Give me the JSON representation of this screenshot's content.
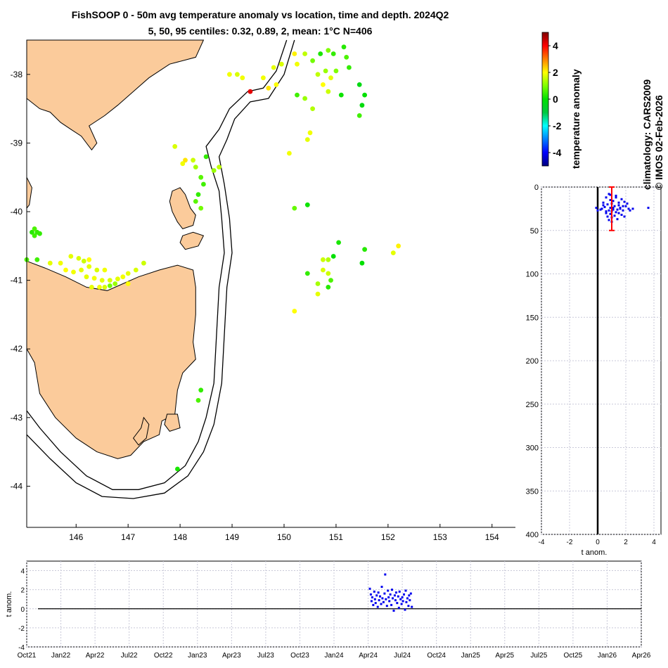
{
  "title_line1": "FishSOOP 0 - 50m avg temperature anomaly vs location, time and depth. 2024Q2",
  "title_line2": "5, 50, 95 centiles: 0.32, 0.89, 2, mean: 1°C N=406",
  "climatology_label": "climatology: CARS2009",
  "copyright_label": "© IMOS 02-Feb-2026",
  "colorbar": {
    "label": "temperature anomaly",
    "range": [
      -5,
      5
    ],
    "ticks": [
      -4,
      -2,
      0,
      2,
      4
    ],
    "colormap": [
      "#00007f",
      "#0000ff",
      "#007fff",
      "#00ffff",
      "#00c840",
      "#00e000",
      "#7fff00",
      "#ffff00",
      "#ff7f00",
      "#ff0000",
      "#7f0000"
    ]
  },
  "chart_data": [
    {
      "type": "scatter",
      "name": "map",
      "xlabel": "",
      "ylabel": "",
      "xlim": [
        145.05,
        154.45
      ],
      "ylim": [
        -44.6,
        -37.5
      ],
      "xticks": [
        146,
        147,
        148,
        149,
        150,
        151,
        152,
        153,
        154
      ],
      "yticks": [
        -38,
        -39,
        -40,
        -41,
        -42,
        -43,
        -44
      ],
      "land_color": "#fbcb9b",
      "points": [
        [
          150.4,
          -37.7,
          1.5
        ],
        [
          150.55,
          -37.8,
          0.9
        ],
        [
          150.7,
          -37.7,
          0.2
        ],
        [
          150.85,
          -37.65,
          1.0
        ],
        [
          150.95,
          -37.7,
          0.4
        ],
        [
          151.15,
          -37.6,
          0.3
        ],
        [
          151.2,
          -37.75,
          0.6
        ],
        [
          151.25,
          -37.9,
          0.4
        ],
        [
          150.65,
          -38.0,
          1.5
        ],
        [
          150.8,
          -37.95,
          1.2
        ],
        [
          150.9,
          -38.05,
          1.8
        ],
        [
          151.0,
          -37.95,
          1.0
        ],
        [
          150.75,
          -38.15,
          2.0
        ],
        [
          150.85,
          -38.25,
          1.6
        ],
        [
          150.2,
          -37.7,
          2.1
        ],
        [
          150.25,
          -37.85,
          1.9
        ],
        [
          149.95,
          -37.85,
          1.7
        ],
        [
          149.8,
          -37.9,
          1.8
        ],
        [
          149.6,
          -38.05,
          1.9
        ],
        [
          149.7,
          -38.2,
          2.2
        ],
        [
          149.85,
          -38.15,
          2.0
        ],
        [
          149.35,
          -38.25,
          4.2
        ],
        [
          149.2,
          -38.05,
          1.9
        ],
        [
          149.1,
          -38.0,
          1.7
        ],
        [
          148.95,
          -38.0,
          1.9
        ],
        [
          150.25,
          -38.3,
          0.5
        ],
        [
          150.4,
          -38.35,
          1.2
        ],
        [
          150.55,
          -38.5,
          1.4
        ],
        [
          151.1,
          -38.3,
          0.1
        ],
        [
          151.45,
          -38.15,
          -0.3
        ],
        [
          151.55,
          -38.3,
          0.0
        ],
        [
          151.5,
          -38.45,
          -0.2
        ],
        [
          151.45,
          -38.6,
          0.5
        ],
        [
          150.5,
          -38.85,
          1.9
        ],
        [
          150.45,
          -38.95,
          1.8
        ],
        [
          150.1,
          -39.15,
          1.9
        ],
        [
          147.9,
          -39.05,
          1.7
        ],
        [
          148.1,
          -39.25,
          2.2
        ],
        [
          148.05,
          -39.3,
          1.9
        ],
        [
          148.25,
          -39.25,
          1.6
        ],
        [
          148.3,
          -39.35,
          1.3
        ],
        [
          148.5,
          -39.2,
          0.4
        ],
        [
          148.65,
          -39.4,
          1.2
        ],
        [
          148.75,
          -39.35,
          1.5
        ],
        [
          148.4,
          -39.5,
          0.7
        ],
        [
          148.45,
          -39.6,
          0.5
        ],
        [
          148.35,
          -39.75,
          0.4
        ],
        [
          148.3,
          -39.85,
          0.7
        ],
        [
          148.4,
          -39.95,
          0.9
        ],
        [
          150.2,
          -39.95,
          0.8
        ],
        [
          150.45,
          -39.9,
          0.1
        ],
        [
          151.05,
          -40.45,
          0.2
        ],
        [
          151.55,
          -40.55,
          0.3
        ],
        [
          152.2,
          -40.5,
          2.1
        ],
        [
          152.1,
          -40.6,
          1.8
        ],
        [
          151.5,
          -40.75,
          0.0
        ],
        [
          150.75,
          -40.7,
          1.6
        ],
        [
          150.85,
          -40.7,
          1.4
        ],
        [
          150.95,
          -40.65,
          0.0
        ],
        [
          150.75,
          -40.85,
          1.7
        ],
        [
          150.85,
          -40.9,
          1.6
        ],
        [
          150.45,
          -40.9,
          0.4
        ],
        [
          150.65,
          -41.05,
          1.3
        ],
        [
          150.9,
          -41.0,
          0.6
        ],
        [
          150.85,
          -41.1,
          0.3
        ],
        [
          150.65,
          -41.2,
          1.8
        ],
        [
          150.2,
          -41.45,
          2.0
        ],
        [
          145.15,
          -40.3,
          0.3
        ],
        [
          145.2,
          -40.35,
          0.5
        ],
        [
          145.25,
          -40.3,
          0.4
        ],
        [
          145.2,
          -40.25,
          0.6
        ],
        [
          145.3,
          -40.32,
          0.4
        ],
        [
          145.05,
          -40.7,
          0.6
        ],
        [
          145.25,
          -40.7,
          0.5
        ],
        [
          145.5,
          -40.75,
          1.8
        ],
        [
          145.7,
          -40.75,
          1.9
        ],
        [
          145.9,
          -40.65,
          1.8
        ],
        [
          146.05,
          -40.68,
          1.7
        ],
        [
          146.15,
          -40.72,
          1.6
        ],
        [
          146.25,
          -40.7,
          2.0
        ],
        [
          145.8,
          -40.85,
          2.0
        ],
        [
          145.95,
          -40.88,
          1.9
        ],
        [
          146.1,
          -40.85,
          1.8
        ],
        [
          146.25,
          -40.8,
          1.8
        ],
        [
          146.4,
          -40.85,
          1.7
        ],
        [
          146.55,
          -40.85,
          1.9
        ],
        [
          146.2,
          -40.95,
          1.8
        ],
        [
          146.35,
          -40.97,
          1.9
        ],
        [
          146.5,
          -41.0,
          1.8
        ],
        [
          146.65,
          -41.0,
          1.7
        ],
        [
          146.8,
          -40.98,
          1.8
        ],
        [
          146.9,
          -40.95,
          1.9
        ],
        [
          147.0,
          -40.9,
          1.8
        ],
        [
          147.15,
          -40.85,
          1.7
        ],
        [
          147.3,
          -40.75,
          1.6
        ],
        [
          147.0,
          -41.05,
          2.0
        ],
        [
          146.3,
          -41.1,
          1.8
        ],
        [
          146.45,
          -41.1,
          1.9
        ],
        [
          146.55,
          -41.1,
          1.7
        ],
        [
          146.65,
          -41.08,
          0.9
        ],
        [
          146.75,
          -41.05,
          1.2
        ],
        [
          148.4,
          -42.6,
          0.4
        ],
        [
          148.35,
          -42.75,
          0.6
        ],
        [
          147.95,
          -43.75,
          0.2
        ]
      ]
    },
    {
      "type": "scatter",
      "name": "depth_profile",
      "xlabel": "t anom.",
      "ylabel": "",
      "xlim": [
        -4,
        4.5
      ],
      "ylim": [
        400,
        0
      ],
      "xticks": [
        -4,
        -2,
        0,
        2,
        4
      ],
      "yticks": [
        0,
        50,
        100,
        150,
        200,
        250,
        300,
        350,
        400
      ],
      "errorbar": {
        "x": 1.0,
        "y_min": 0,
        "y_max": 50
      },
      "points": [
        [
          0.8,
          8
        ],
        [
          1.3,
          10
        ],
        [
          0.6,
          12
        ],
        [
          1.7,
          14
        ],
        [
          0.9,
          15
        ],
        [
          1.1,
          16
        ],
        [
          1.9,
          17
        ],
        [
          0.4,
          18
        ],
        [
          1.0,
          19
        ],
        [
          0.7,
          20
        ],
        [
          1.5,
          21
        ],
        [
          2.0,
          22
        ],
        [
          1.2,
          22
        ],
        [
          0.5,
          23
        ],
        [
          0.9,
          24
        ],
        [
          1.6,
          24
        ],
        [
          2.2,
          25
        ],
        [
          0.3,
          25
        ],
        [
          1.1,
          26
        ],
        [
          1.4,
          26
        ],
        [
          0.8,
          27
        ],
        [
          1.8,
          27
        ],
        [
          0.2,
          26
        ],
        [
          1.0,
          28
        ],
        [
          1.3,
          29
        ],
        [
          2.5,
          25
        ],
        [
          0.6,
          30
        ],
        [
          1.5,
          30
        ],
        [
          0.9,
          31
        ],
        [
          1.7,
          32
        ],
        [
          1.2,
          33
        ],
        [
          0.7,
          34
        ],
        [
          1.9,
          34
        ],
        [
          1.0,
          35
        ],
        [
          1.4,
          37
        ],
        [
          0.8,
          38
        ],
        [
          1.6,
          25
        ],
        [
          1.1,
          24
        ],
        [
          0.4,
          21
        ],
        [
          2.1,
          19
        ],
        [
          3.6,
          24
        ],
        [
          1.3,
          12
        ],
        [
          0.9,
          9
        ],
        [
          1.5,
          18
        ],
        [
          0.6,
          28
        ],
        [
          1.8,
          22
        ],
        [
          2.3,
          27
        ],
        [
          1.0,
          40
        ],
        [
          -0.1,
          24
        ],
        [
          0.0,
          27
        ]
      ]
    },
    {
      "type": "scatter",
      "name": "time_series",
      "xlabel": "",
      "ylabel": "t anom.",
      "ylim": [
        -4,
        5
      ],
      "yticks": [
        -4,
        -2,
        0,
        2,
        4
      ],
      "xtick_labels": [
        "Oct21",
        "Jan22",
        "Apr22",
        "Jul22",
        "Oct22",
        "Jan23",
        "Apr23",
        "Jul23",
        "Oct23",
        "Jan24",
        "Apr24",
        "Jul24",
        "Oct24",
        "Jan25",
        "Apr25",
        "Jul25",
        "Oct25",
        "Jan26",
        "Apr26"
      ],
      "points": [
        [
          10.05,
          2.1
        ],
        [
          10.08,
          1.5
        ],
        [
          10.1,
          0.8
        ],
        [
          10.12,
          1.2
        ],
        [
          10.15,
          0.4
        ],
        [
          10.18,
          1.8
        ],
        [
          10.2,
          1.0
        ],
        [
          10.22,
          0.6
        ],
        [
          10.25,
          1.4
        ],
        [
          10.28,
          0.2
        ],
        [
          10.3,
          1.7
        ],
        [
          10.32,
          0.9
        ],
        [
          10.35,
          1.3
        ],
        [
          10.38,
          0.5
        ],
        [
          10.4,
          2.3
        ],
        [
          10.42,
          1.1
        ],
        [
          10.45,
          0.7
        ],
        [
          10.48,
          1.6
        ],
        [
          10.5,
          3.6
        ],
        [
          10.52,
          1.0
        ],
        [
          10.55,
          0.3
        ],
        [
          10.58,
          1.9
        ],
        [
          10.6,
          1.2
        ],
        [
          10.62,
          0.8
        ],
        [
          10.65,
          1.5
        ],
        [
          10.68,
          0.4
        ],
        [
          10.7,
          2.0
        ],
        [
          10.72,
          1.1
        ],
        [
          10.75,
          -0.2
        ],
        [
          10.78,
          1.4
        ],
        [
          10.8,
          0.9
        ],
        [
          10.82,
          1.7
        ],
        [
          10.85,
          0.6
        ],
        [
          10.88,
          1.3
        ],
        [
          10.9,
          0.1
        ],
        [
          10.92,
          1.8
        ],
        [
          10.95,
          1.0
        ],
        [
          10.98,
          0.5
        ],
        [
          11.0,
          1.2
        ],
        [
          11.02,
          0.8
        ],
        [
          11.05,
          1.5
        ],
        [
          11.08,
          -0.1
        ],
        [
          11.1,
          1.9
        ],
        [
          11.12,
          0.7
        ],
        [
          11.15,
          1.1
        ],
        [
          11.18,
          0.3
        ],
        [
          11.2,
          1.4
        ],
        [
          11.22,
          0.9
        ],
        [
          11.25,
          1.6
        ],
        [
          11.28,
          0.2
        ]
      ]
    }
  ]
}
